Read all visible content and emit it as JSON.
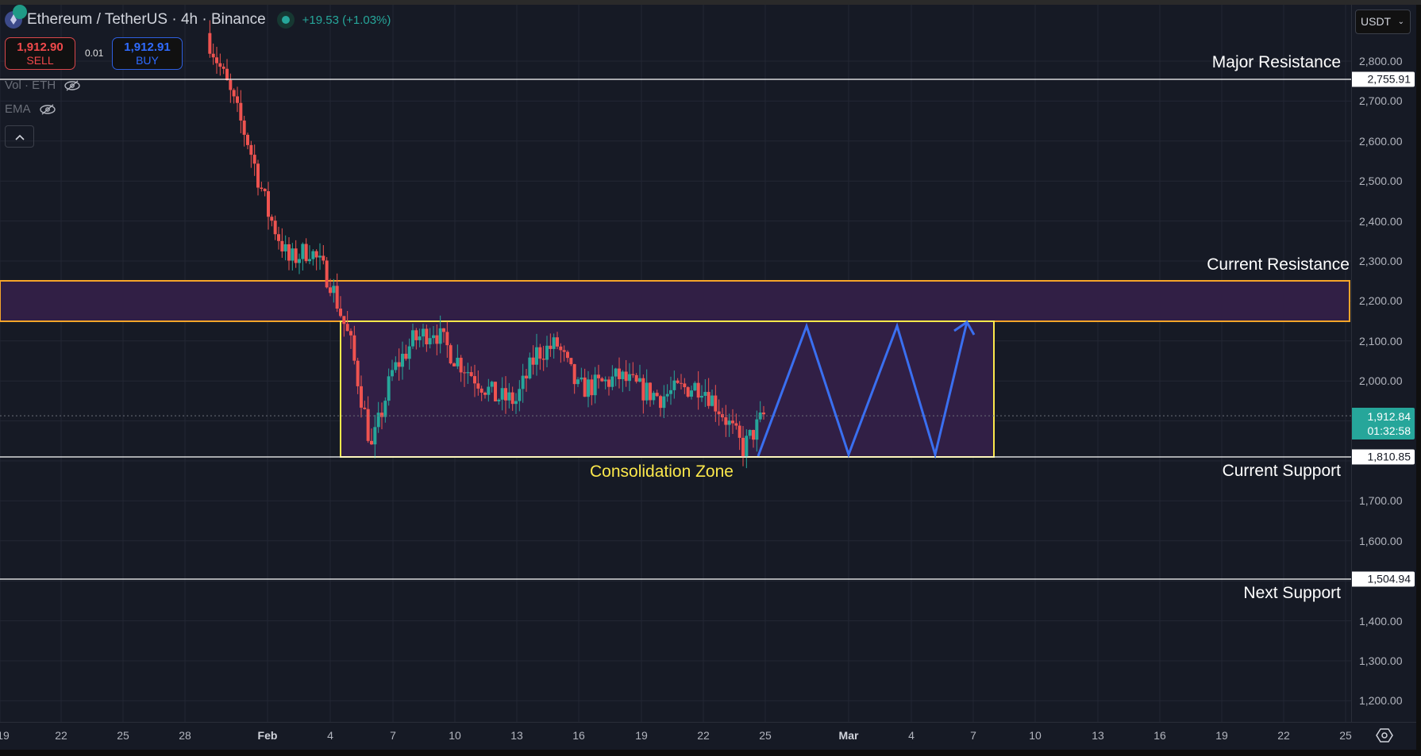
{
  "header": {
    "symbol_title": "Ethereum / TetherUS · 4h · Binance",
    "change": "+19.53 (+1.03%)",
    "sell_price": "1,912.90",
    "sell_label": "SELL",
    "spread": "0.01",
    "buy_price": "1,912.91",
    "buy_label": "BUY",
    "indicators": [
      "Vol · ETH",
      "EMA"
    ],
    "currency": "USDT"
  },
  "annotations": {
    "major_resistance": "Major Resistance",
    "current_resistance": "Current Resistance",
    "current_support": "Current Support",
    "next_support": "Next Support",
    "consolidation_zone": "Consolidation Zone"
  },
  "price_axis": {
    "ticks": [
      "2,800.00",
      "2,700.00",
      "2,600.00",
      "2,500.00",
      "2,400.00",
      "2,300.00",
      "2,200.00",
      "2,100.00",
      "2,000.00",
      "1,700.00",
      "1,600.00",
      "1,400.00",
      "1,300.00",
      "1,200.00"
    ],
    "tags": {
      "major_resistance": "2,755.91",
      "current_support": "1,810.85",
      "next_support": "1,504.94"
    },
    "last_price": "1,912.84",
    "countdown": "01:32:58"
  },
  "time_axis": {
    "ticks": [
      "19",
      "22",
      "25",
      "28",
      "Feb",
      "4",
      "7",
      "10",
      "13",
      "16",
      "19",
      "22",
      "25",
      "Mar",
      "4",
      "7",
      "10",
      "13",
      "16",
      "19",
      "22",
      "25"
    ]
  },
  "colors": {
    "background": "#161a25",
    "up": "#26a69a",
    "down": "#ef5350",
    "zone_fill": "#311f45",
    "resistance_border": "#f6a52a",
    "consolidation_border": "#fce84b",
    "projection": "#3a6ff0",
    "levels": "#ffffff"
  },
  "chart_data": {
    "type": "candlestick",
    "title": "Ethereum / TetherUS · 4h · Binance",
    "xlabel": "",
    "ylabel": "USDT",
    "ylim": [
      1150,
      2870
    ],
    "x_ticks": [
      "19",
      "22",
      "25",
      "28",
      "Feb",
      "4",
      "7",
      "10",
      "13",
      "16",
      "19",
      "22",
      "25",
      "Mar",
      "4",
      "7",
      "10",
      "13",
      "16",
      "19",
      "22",
      "25"
    ],
    "last_price": 1912.84,
    "bid": 1912.9,
    "ask": 1912.91,
    "change": 19.53,
    "change_pct": 1.03,
    "horizontal_levels": [
      {
        "name": "Major Resistance",
        "price": 2755.91
      },
      {
        "name": "Current Support",
        "price": 1810.85
      },
      {
        "name": "Next Support",
        "price": 1504.94
      }
    ],
    "zones": [
      {
        "name": "Current Resistance",
        "from": 2150,
        "to": 2250
      },
      {
        "name": "Consolidation Zone",
        "from": 1810.85,
        "to": 2150,
        "start": "Feb 4",
        "end": "Mar 8"
      }
    ],
    "approx_close_path": [
      {
        "date": "Jan 29",
        "price": 2870
      },
      {
        "date": "Jan 30",
        "price": 2740
      },
      {
        "date": "Jan 31",
        "price": 2600
      },
      {
        "date": "Feb 1",
        "price": 2420
      },
      {
        "date": "Feb 2",
        "price": 2300
      },
      {
        "date": "Feb 3",
        "price": 2330
      },
      {
        "date": "Feb 4",
        "price": 2250
      },
      {
        "date": "Feb 5",
        "price": 2090
      },
      {
        "date": "Feb 6",
        "price": 1830
      },
      {
        "date": "Feb 7",
        "price": 2020
      },
      {
        "date": "Feb 8",
        "price": 2100
      },
      {
        "date": "Feb 9",
        "price": 2130
      },
      {
        "date": "Feb 10",
        "price": 2060
      },
      {
        "date": "Feb 11",
        "price": 2010
      },
      {
        "date": "Feb 12",
        "price": 1960
      },
      {
        "date": "Feb 13",
        "price": 1950
      },
      {
        "date": "Feb 14",
        "price": 2070
      },
      {
        "date": "Feb 15",
        "price": 2090
      },
      {
        "date": "Feb 16",
        "price": 1980
      },
      {
        "date": "Feb 17",
        "price": 1990
      },
      {
        "date": "Feb 18",
        "price": 2010
      },
      {
        "date": "Feb 19",
        "price": 1980
      },
      {
        "date": "Feb 20",
        "price": 1960
      },
      {
        "date": "Feb 21",
        "price": 1980
      },
      {
        "date": "Feb 22",
        "price": 1990
      },
      {
        "date": "Feb 23",
        "price": 1920
      },
      {
        "date": "Feb 24",
        "price": 1830
      },
      {
        "date": "Feb 25",
        "price": 1912.84
      }
    ],
    "projection_path": [
      {
        "date": "Feb 25",
        "price": 1811
      },
      {
        "date": "Feb 27",
        "price": 2130
      },
      {
        "date": "Mar 1",
        "price": 1815
      },
      {
        "date": "Mar 3",
        "price": 2130
      },
      {
        "date": "Mar 5",
        "price": 1815
      },
      {
        "date": "Mar 7",
        "price": 2150
      }
    ]
  }
}
